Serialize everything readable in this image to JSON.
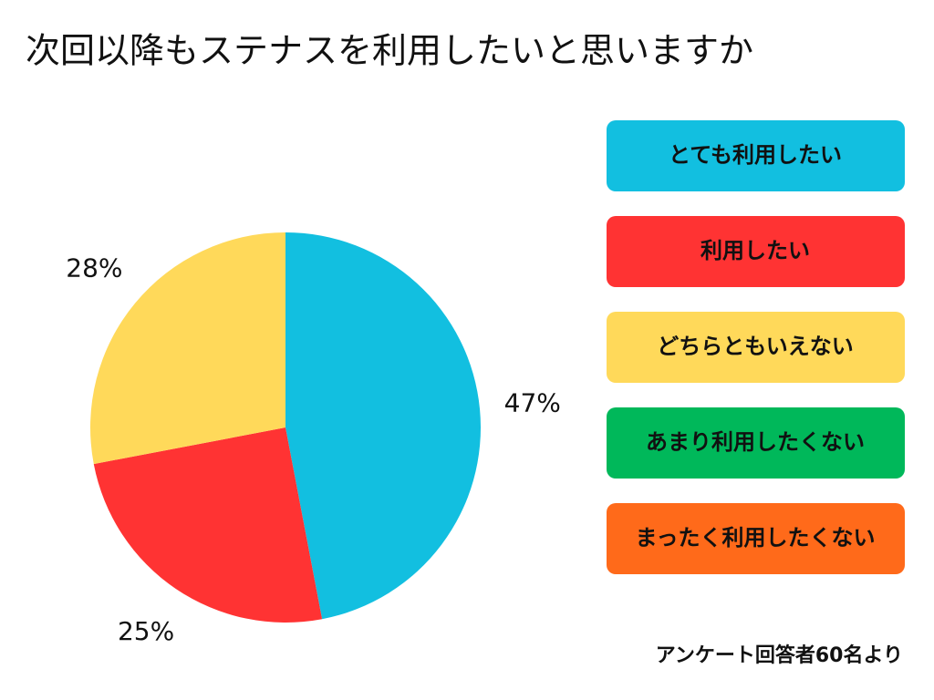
{
  "chart_data": {
    "type": "pie",
    "title": "次回以降もステナスを利用したいと思いますか",
    "categories": [
      "とても利用したい",
      "利用したい",
      "どちらともいえない",
      "あまり利用したくない",
      "まったく利用したくない"
    ],
    "values": [
      47,
      25,
      28,
      0,
      0
    ],
    "value_labels": [
      "47%",
      "25%",
      "28%",
      null,
      null
    ],
    "colors": [
      "#12bfe0",
      "#ff3333",
      "#ffd95a",
      "#00b85a",
      "#ff6a1a"
    ],
    "note": "アンケート回答者60名より"
  }
}
